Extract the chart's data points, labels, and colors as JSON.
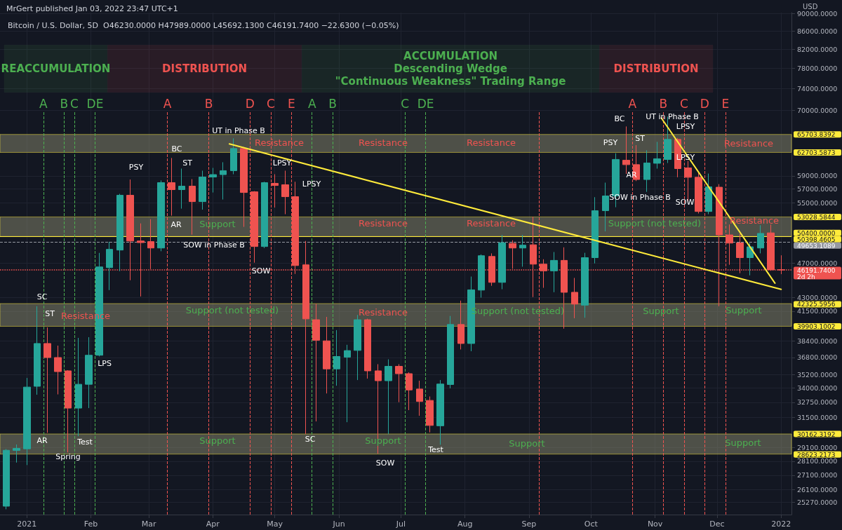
{
  "chart_data": {
    "type": "candlestick",
    "title": "Bitcoin / U.S. Dollar, 5D  O46230.0000 H47989.0000 L45692.1300 C46191.7400 −22.6300 (−0.05%)",
    "subtitle": "MrGert published Jan 03, 2022 23:47 UTC+1",
    "ylabel": "USD",
    "log": true,
    "x": [
      "2020-12-22",
      "2020-12-27",
      "2021-01-01",
      "2021-01-06",
      "2021-01-11",
      "2021-01-16",
      "2021-01-21",
      "2021-01-26",
      "2021-01-31",
      "2021-02-05",
      "2021-02-10",
      "2021-02-15",
      "2021-02-20",
      "2021-02-25",
      "2021-03-02",
      "2021-03-07",
      "2021-03-12",
      "2021-03-17",
      "2021-03-22",
      "2021-03-27",
      "2021-04-01",
      "2021-04-06",
      "2021-04-11",
      "2021-04-16",
      "2021-04-21",
      "2021-04-26",
      "2021-05-01",
      "2021-05-06",
      "2021-05-11",
      "2021-05-16",
      "2021-05-21",
      "2021-05-26",
      "2021-05-31",
      "2021-06-05",
      "2021-06-10",
      "2021-06-15",
      "2021-06-20",
      "2021-06-25",
      "2021-06-30",
      "2021-07-05",
      "2021-07-10",
      "2021-07-15",
      "2021-07-20",
      "2021-07-25",
      "2021-07-30",
      "2021-08-04",
      "2021-08-09",
      "2021-08-14",
      "2021-08-19",
      "2021-08-24",
      "2021-08-29",
      "2021-09-03",
      "2021-09-08",
      "2021-09-13",
      "2021-09-18",
      "2021-09-23",
      "2021-09-28",
      "2021-10-03",
      "2021-10-08",
      "2021-10-13",
      "2021-10-18",
      "2021-10-23",
      "2021-10-28",
      "2021-11-02",
      "2021-11-07",
      "2021-11-12",
      "2021-11-17",
      "2021-11-22",
      "2021-11-27",
      "2021-12-02",
      "2021-12-07",
      "2021-12-12",
      "2021-12-17",
      "2021-12-22",
      "2021-12-27",
      "2022-01-01"
    ],
    "ohlc": [
      [
        25000,
        29000,
        24800,
        28910
      ],
      [
        28900,
        29350,
        28000,
        29050
      ],
      [
        29020,
        34890,
        27820,
        34070
      ],
      [
        34140,
        42040,
        33400,
        38160
      ],
      [
        38160,
        39790,
        30250,
        36790
      ],
      [
        36790,
        37950,
        33430,
        35470
      ],
      [
        35540,
        35600,
        28750,
        32260
      ],
      [
        32260,
        38720,
        29990,
        34320
      ],
      [
        34320,
        38790,
        32260,
        37010
      ],
      [
        37010,
        48290,
        36900,
        46560
      ],
      [
        46480,
        49700,
        43840,
        48740
      ],
      [
        48650,
        56300,
        46050,
        56100
      ],
      [
        56100,
        58440,
        44980,
        49810
      ],
      [
        49810,
        52140,
        43120,
        49600
      ],
      [
        49730,
        52720,
        46300,
        48910
      ],
      [
        48910,
        58300,
        48500,
        57970
      ],
      [
        57970,
        61800,
        53200,
        56920
      ],
      [
        56920,
        60120,
        54180,
        57440
      ],
      [
        57440,
        58500,
        50640,
        55180
      ],
      [
        55180,
        59800,
        54040,
        58820
      ],
      [
        58820,
        60230,
        56500,
        59190
      ],
      [
        59190,
        61120,
        55480,
        59800
      ],
      [
        59800,
        65040,
        59250,
        63340
      ],
      [
        63340,
        63600,
        51670,
        56500
      ],
      [
        56600,
        56700,
        47080,
        49100
      ],
      [
        49100,
        58100,
        48900,
        57970
      ],
      [
        57860,
        59250,
        54330,
        57540
      ],
      [
        57650,
        59800,
        53400,
        55890
      ],
      [
        55890,
        58100,
        45720,
        46730
      ],
      [
        46820,
        49810,
        30150,
        40680
      ],
      [
        40590,
        42300,
        31160,
        38480
      ],
      [
        38420,
        40890,
        33510,
        35720
      ],
      [
        35720,
        39510,
        34190,
        36890
      ],
      [
        36830,
        38030,
        31100,
        37460
      ],
      [
        37480,
        41100,
        34700,
        40590
      ],
      [
        40590,
        40700,
        34830,
        35540
      ],
      [
        35540,
        36160,
        28660,
        34640
      ],
      [
        34640,
        36620,
        30150,
        35960
      ],
      [
        35960,
        36160,
        32760,
        35280
      ],
      [
        35280,
        35400,
        32090,
        33820
      ],
      [
        33900,
        34640,
        31620,
        32820
      ],
      [
        32910,
        33250,
        30290,
        30840
      ],
      [
        30810,
        34700,
        29330,
        34340
      ],
      [
        34300,
        40990,
        33960,
        40090
      ],
      [
        40090,
        42660,
        37570,
        38160
      ],
      [
        38160,
        45410,
        37400,
        43870
      ],
      [
        43840,
        48100,
        42990,
        47940
      ],
      [
        47850,
        48230,
        44330,
        44730
      ],
      [
        44730,
        50600,
        43940,
        49580
      ],
      [
        49500,
        49900,
        46340,
        48910
      ],
      [
        48910,
        50600,
        46590,
        49270
      ],
      [
        49320,
        53050,
        43050,
        46900
      ],
      [
        46900,
        47500,
        44100,
        46090
      ],
      [
        46090,
        48400,
        43600,
        47360
      ],
      [
        47360,
        49000,
        39660,
        43590
      ],
      [
        43590,
        45250,
        40750,
        42270
      ],
      [
        42160,
        48300,
        40800,
        47700
      ],
      [
        47700,
        55820,
        46990,
        53890
      ],
      [
        53890,
        57970,
        51070,
        56000
      ],
      [
        56000,
        62560,
        54380,
        61570
      ],
      [
        61440,
        67080,
        59300,
        60740
      ],
      [
        60740,
        63900,
        58200,
        58440
      ],
      [
        58440,
        63050,
        56600,
        61010
      ],
      [
        60960,
        64450,
        60120,
        61680
      ],
      [
        61570,
        68830,
        61000,
        64860
      ],
      [
        64860,
        65100,
        58780,
        60120
      ],
      [
        60230,
        61330,
        55280,
        58780
      ],
      [
        58780,
        59470,
        53500,
        53780
      ],
      [
        53780,
        59350,
        53400,
        57340
      ],
      [
        57280,
        57740,
        42040,
        50600
      ],
      [
        50600,
        51990,
        46820,
        49540
      ],
      [
        49560,
        50740,
        45810,
        47700
      ],
      [
        47700,
        49560,
        45550,
        49060
      ],
      [
        48910,
        51890,
        48230,
        50800
      ],
      [
        50870,
        51990,
        46100,
        46210
      ],
      [
        46230,
        47989,
        45692.13,
        46191.74
      ]
    ],
    "colors": [
      "#26a69a",
      "#26a69a",
      "#26a69a",
      "#26a69a",
      "#ef5350",
      "#ef5350",
      "#ef5350",
      "#26a69a",
      "#26a69a",
      "#26a69a",
      "#26a69a",
      "#26a69a",
      "#ef5350",
      "#ef5350",
      "#ef5350",
      "#26a69a",
      "#ef5350",
      "#26a69a",
      "#ef5350",
      "#26a69a",
      "#26a69a",
      "#26a69a",
      "#26a69a",
      "#ef5350",
      "#ef5350",
      "#26a69a",
      "#ef5350",
      "#ef5350",
      "#ef5350",
      "#ef5350",
      "#ef5350",
      "#ef5350",
      "#26a69a",
      "#26a69a",
      "#26a69a",
      "#ef5350",
      "#ef5350",
      "#26a69a",
      "#ef5350",
      "#ef5350",
      "#ef5350",
      "#ef5350",
      "#26a69a",
      "#26a69a",
      "#ef5350",
      "#26a69a",
      "#26a69a",
      "#ef5350",
      "#26a69a",
      "#ef5350",
      "#26a69a",
      "#ef5350",
      "#ef5350",
      "#26a69a",
      "#ef5350",
      "#ef5350",
      "#26a69a",
      "#26a69a",
      "#26a69a",
      "#26a69a",
      "#ef5350",
      "#ef5350",
      "#26a69a",
      "#26a69a",
      "#26a69a",
      "#ef5350",
      "#ef5350",
      "#ef5350",
      "#26a69a",
      "#ef5350",
      "#ef5350",
      "#ef5350",
      "#26a69a",
      "#26a69a",
      "#ef5350",
      "#ef5350"
    ],
    "series": [
      {
        "type": "line",
        "color": "#ffeb3b",
        "x": [
          "2021-04-09",
          "2022-01-01"
        ],
        "values": [
          64100,
          43920
        ]
      },
      {
        "type": "line",
        "color": "#ffeb3b",
        "x": [
          "2021-11-04",
          "2021-12-29"
        ],
        "values": [
          68580,
          44640
        ]
      }
    ],
    "marker": "none",
    "xlim": [
      "2020-12-19",
      "2022-01-06"
    ],
    "ylim": [
      24460,
      90180
    ],
    "xticks": [
      {
        "value": "2021-01-01",
        "label": "2021"
      },
      {
        "value": "2021-02-01",
        "label": "Feb"
      },
      {
        "value": "2021-03-01",
        "label": "Mar"
      },
      {
        "value": "2021-04-01",
        "label": "Apr"
      },
      {
        "value": "2021-05-01",
        "label": "May"
      },
      {
        "value": "2021-06-01",
        "label": "Jun"
      },
      {
        "value": "2021-07-01",
        "label": "Jul"
      },
      {
        "value": "2021-08-01",
        "label": "Aug"
      },
      {
        "value": "2021-09-01",
        "label": "Sep"
      },
      {
        "value": "2021-10-01",
        "label": "Oct"
      },
      {
        "value": "2021-11-01",
        "label": "Nov"
      },
      {
        "value": "2021-12-01",
        "label": "Dec"
      },
      {
        "value": "2022-01-01",
        "label": "2022"
      }
    ],
    "yticks": [
      {
        "value": 90000,
        "label": "90000.0000"
      },
      {
        "value": 86000,
        "label": "86000.0000"
      },
      {
        "value": 82000,
        "label": "82000.0000"
      },
      {
        "value": 78000,
        "label": "78000.0000"
      },
      {
        "value": 74000,
        "label": "74000.0000"
      },
      {
        "value": 70000,
        "label": "70000.0000"
      },
      {
        "value": 65703.8392,
        "label": "65703.8392"
      },
      {
        "value": 62703.5873,
        "label": "62703.5873"
      },
      {
        "value": 59000,
        "label": "59000.0000"
      },
      {
        "value": 57000,
        "label": "57000.0000"
      },
      {
        "value": 55000,
        "label": "55000.0000"
      },
      {
        "value": 53028.5844,
        "label": "53028.5844"
      },
      {
        "value": 50400,
        "label": "50400.0000"
      },
      {
        "value": 50398.4605,
        "label": "50398.4605"
      },
      {
        "value": 49653.1089,
        "label": "49653.1089"
      },
      {
        "value": 47000,
        "label": "47000.0000"
      },
      {
        "value": 46191.74,
        "label": "46191.7400"
      },
      {
        "value": 43000,
        "label": "43000.0000"
      },
      {
        "value": 42325.5956,
        "label": "42325.5956"
      },
      {
        "value": 41500,
        "label": "41500.0000"
      },
      {
        "value": 39903.1002,
        "label": "39903.1002"
      },
      {
        "value": 38400,
        "label": "38400.0000"
      },
      {
        "value": 36800,
        "label": "36800.0000"
      },
      {
        "value": 35200,
        "label": "35200.0000"
      },
      {
        "value": 34000,
        "label": "34000.0000"
      },
      {
        "value": 32750,
        "label": "32750.0000"
      },
      {
        "value": 31500,
        "label": "31500.0000"
      },
      {
        "value": 30162.3192,
        "label": "30162.3192"
      },
      {
        "value": 29100,
        "label": "29100.0000"
      },
      {
        "value": 28623.2173,
        "label": "28623.2173"
      },
      {
        "value": 28100,
        "label": "28100.0000"
      },
      {
        "value": 27100,
        "label": "27100.0000"
      },
      {
        "value": 26100,
        "label": "26100.0000"
      },
      {
        "value": 25270,
        "label": "25270.0000"
      }
    ],
    "grid": true,
    "bands": [
      {
        "axis": "y",
        "from": 62703.5873,
        "to": 65703.8392,
        "color": "#8a8a6e"
      },
      {
        "axis": "y",
        "from": 50400,
        "to": 53028.5844,
        "color": "#8a8a6e"
      },
      {
        "axis": "y",
        "from": 39903.1002,
        "to": 42325.5956,
        "color": "#8a8a6e"
      },
      {
        "axis": "y",
        "from": 28623.2173,
        "to": 30162.3192,
        "color": "#8a8a6e"
      },
      {
        "axis": "x",
        "from": "2020-12-21",
        "to": "2021-02-09",
        "label": "REACCUMULATION",
        "color": "#4caf50"
      },
      {
        "axis": "x",
        "from": "2021-02-09",
        "to": "2021-05-14",
        "label": "DISTRIBUTION",
        "color": "#ef5350"
      },
      {
        "axis": "x",
        "from": "2021-05-14",
        "to": "2021-10-05",
        "label": "ACCUMULATION\nDescending Wedge\n\"Continuous Weakness\" Trading Range",
        "color": "#4caf50"
      },
      {
        "axis": "x",
        "from": "2021-10-05",
        "to": "2021-11-29",
        "label": "DISTRIBUTION",
        "color": "#ef5350"
      }
    ],
    "ref_lines": [
      {
        "axis": "y",
        "value": 50398.4605,
        "color": "#ffeb3b",
        "line_style": "solid"
      },
      {
        "axis": "y",
        "value": 49653.1089,
        "color": "#9598a1",
        "line_style": "dashed"
      },
      {
        "axis": "y",
        "value": 46191.74,
        "label": "2d 2h",
        "color": "#ef5350",
        "line_style": "dotted"
      },
      {
        "axis": "x",
        "value": "2021-01-09",
        "label": "A",
        "color": "#4caf50",
        "line_style": "dashed"
      },
      {
        "axis": "x",
        "value": "2021-01-19",
        "label": "B",
        "color": "#4caf50",
        "line_style": "dashed"
      },
      {
        "axis": "x",
        "value": "2021-01-24",
        "label": "C",
        "color": "#4caf50",
        "line_style": "dashed"
      },
      {
        "axis": "x",
        "value": "2021-02-03",
        "label": "DE",
        "color": "#4caf50",
        "line_style": "dashed"
      },
      {
        "axis": "x",
        "value": "2021-03-10",
        "label": "A",
        "color": "#ef5350",
        "line_style": "dashed"
      },
      {
        "axis": "x",
        "value": "2021-03-30",
        "label": "B",
        "color": "#ef5350",
        "line_style": "dashed"
      },
      {
        "axis": "x",
        "value": "2021-04-19",
        "label": "D",
        "color": "#ef5350",
        "line_style": "dashed"
      },
      {
        "axis": "x",
        "value": "2021-04-29",
        "label": "C",
        "color": "#ef5350",
        "line_style": "dashed"
      },
      {
        "axis": "x",
        "value": "2021-05-09",
        "label": "E",
        "color": "#ef5350",
        "line_style": "dashed"
      },
      {
        "axis": "x",
        "value": "2021-05-19",
        "label": "A",
        "color": "#4caf50",
        "line_style": "dashed"
      },
      {
        "axis": "x",
        "value": "2021-05-29",
        "label": "B",
        "color": "#4caf50",
        "line_style": "dashed"
      },
      {
        "axis": "x",
        "value": "2021-07-03",
        "label": "C",
        "color": "#4caf50",
        "line_style": "dashed"
      },
      {
        "axis": "x",
        "value": "2021-07-13",
        "label": "DE",
        "color": "#4caf50",
        "line_style": "dashed"
      },
      {
        "axis": "x",
        "value": "2021-09-06",
        "color": "#ef5350",
        "line_style": "dashed"
      },
      {
        "axis": "x",
        "value": "2021-10-21",
        "label": "A",
        "color": "#ef5350",
        "line_style": "dashed"
      },
      {
        "axis": "x",
        "value": "2021-11-05",
        "label": "B",
        "color": "#ef5350",
        "line_style": "dashed"
      },
      {
        "axis": "x",
        "value": "2021-11-15",
        "label": "C",
        "color": "#ef5350",
        "line_style": "dashed"
      },
      {
        "axis": "x",
        "value": "2021-11-25",
        "label": "D",
        "color": "#ef5350",
        "line_style": "dashed"
      },
      {
        "axis": "x",
        "value": "2021-12-05",
        "label": "E",
        "color": "#ef5350",
        "line_style": "dashed"
      }
    ],
    "annotations": [
      "SC",
      "ST",
      "AR",
      "Spring",
      "Test",
      "LPS",
      "PSY",
      "BC",
      "ST",
      "AR",
      "UT in Phase B",
      "SOW in Phase B",
      "LPSY",
      "LPSY",
      "SOW",
      "SC",
      "SOW",
      "Test",
      "BC",
      "PSY",
      "ST",
      "AR",
      "SOW in Phase B",
      "UT in Phase B",
      "LPSY",
      "LPSY",
      "SOW",
      "Resistance",
      "Resistance",
      "Resistance",
      "Resistance",
      "Resistance",
      "Resistance",
      "Resistance",
      "Resistance",
      "Resistance",
      "Support",
      "Support",
      "Support",
      "Support",
      "Support",
      "Support",
      "Support",
      "Support (not tested)",
      "Support (not tested)",
      "Support (not tested)"
    ]
  }
}
